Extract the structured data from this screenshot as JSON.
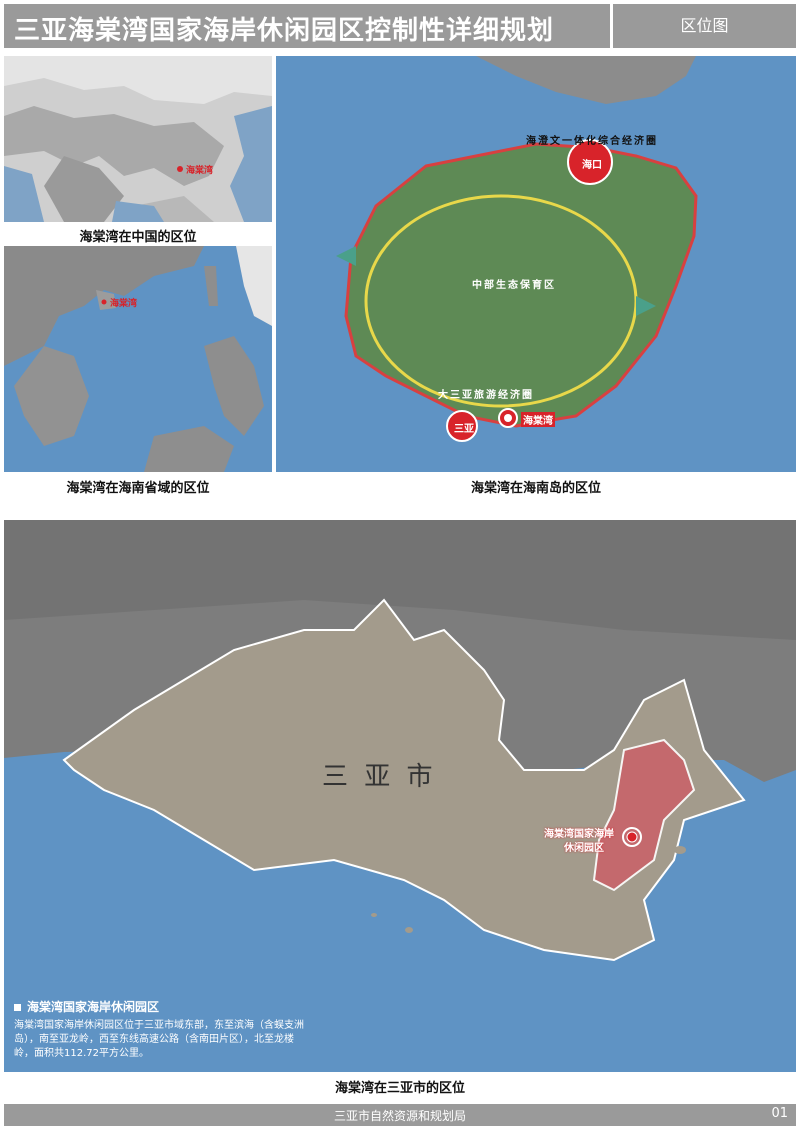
{
  "header": {
    "title": "三亚海棠湾国家海岸休闲园区控制性详细规划",
    "tag": "区位图"
  },
  "panels": {
    "china": {
      "caption": "海棠湾在中国的区位",
      "marker_label": "海棠湾"
    },
    "province": {
      "caption": "海棠湾在海南省域的区位",
      "marker_label": "海棠湾"
    },
    "island": {
      "caption": "海棠湾在海南岛的区位",
      "labels": {
        "north_zone": "海澄文一体化综合经济圈",
        "central_zone": "中部生态保育区",
        "south_zone": "大三亚旅游经济圈",
        "haikou": "海口",
        "sanya": "三亚",
        "haitang": "海棠湾"
      }
    },
    "city": {
      "caption": "海棠湾在三亚市的区位",
      "city_label": "三 亚 市",
      "park_label_line1": "海棠湾国家海岸",
      "park_label_line2": "休闲园区"
    }
  },
  "legend": {
    "title": "海棠湾国家海岸休闲园区",
    "description": "海棠湾国家海岸休闲园区位于三亚市域东部，东至滨海（含蜈支洲岛），南至亚龙岭，西至东线高速公路（含南田片区），北至龙楼岭，面积共112.72平方公里。"
  },
  "footer": {
    "label": "三亚市自然资源和规划局",
    "page": "01"
  },
  "colors": {
    "header_bg": "#9a9a9a",
    "ocean": "#5f93c4",
    "terrain": "#8e8e8e",
    "city_fill": "#a39b8c",
    "park_fill": "#c8646a",
    "island_green": "#5e8a55",
    "marker_red": "#d8232a"
  }
}
